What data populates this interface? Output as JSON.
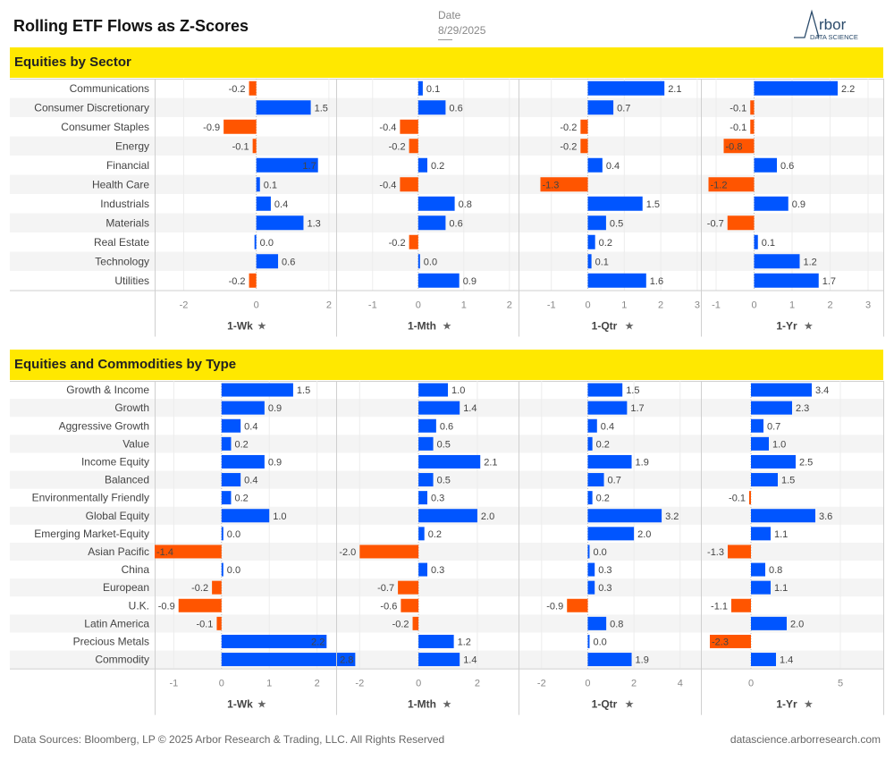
{
  "header": {
    "title": "Rolling ETF Flows as Z-Scores",
    "date_label": "Date",
    "date_value": "8/29/2025",
    "logo_word": "rbor",
    "logo_sub": "DATA SCIENCE"
  },
  "colors": {
    "positive": "#0055FF",
    "negative": "#FF5500",
    "banner": "#FFE800"
  },
  "chart_data": [
    {
      "type": "bar",
      "orientation": "horizontal",
      "title": "Equities by Sector",
      "categories": [
        "Communications",
        "Consumer Discretionary",
        "Consumer Staples",
        "Energy",
        "Financial",
        "Health Care",
        "Industrials",
        "Materials",
        "Real Estate",
        "Technology",
        "Utilities"
      ],
      "series": [
        {
          "name": "1-Wk",
          "values": [
            -0.2,
            1.5,
            -0.9,
            -0.1,
            1.7,
            0.1,
            0.4,
            1.3,
            0.0,
            0.6,
            -0.2
          ],
          "xlim": [
            -2.8,
            2.2
          ],
          "ticks": [
            -2,
            0,
            2
          ]
        },
        {
          "name": "1-Mth",
          "values": [
            0.1,
            0.6,
            -0.4,
            -0.2,
            0.2,
            -0.4,
            0.8,
            0.6,
            -0.2,
            0.0,
            0.9
          ],
          "xlim": [
            -1.8,
            2.2
          ],
          "ticks": [
            -1,
            0,
            1,
            2
          ]
        },
        {
          "name": "1-Qtr",
          "values": [
            2.1,
            0.7,
            -0.2,
            -0.2,
            0.4,
            -1.3,
            1.5,
            0.5,
            0.2,
            0.1,
            1.6
          ],
          "xlim": [
            -1.9,
            3.1
          ],
          "ticks": [
            -1,
            0,
            1,
            2,
            3
          ]
        },
        {
          "name": "1-Yr",
          "values": [
            2.2,
            -0.1,
            -0.1,
            -0.8,
            0.6,
            -1.2,
            0.9,
            -0.7,
            0.1,
            1.2,
            1.7
          ],
          "xlim": [
            -1.4,
            3.4
          ],
          "ticks": [
            -1,
            0,
            1,
            2,
            3
          ]
        }
      ]
    },
    {
      "type": "bar",
      "orientation": "horizontal",
      "title": "Equities and Commodities by Type",
      "categories": [
        "Growth & Income",
        "Growth",
        "Aggressive Growth",
        "Value",
        "Income Equity",
        "Balanced",
        "Environmentally Friendly",
        "Global Equity",
        "Emerging Market-Equity",
        "Asian Pacific",
        "China",
        "European",
        "U.K.",
        "Latin America",
        "Precious Metals",
        "Commodity"
      ],
      "series": [
        {
          "name": "1-Wk",
          "values": [
            1.5,
            0.9,
            0.4,
            0.2,
            0.9,
            0.4,
            0.2,
            1.0,
            0.0,
            -1.4,
            0.0,
            -0.2,
            -0.9,
            -0.1,
            2.2,
            2.8
          ],
          "xlim": [
            -1.4,
            2.4
          ],
          "ticks": [
            -1,
            0,
            1,
            2
          ]
        },
        {
          "name": "1-Mth",
          "values": [
            1.0,
            1.4,
            0.6,
            0.5,
            2.1,
            0.5,
            0.3,
            2.0,
            0.2,
            -2.0,
            0.3,
            -0.7,
            -0.6,
            -0.2,
            1.2,
            1.4
          ],
          "xlim": [
            -2.8,
            3.4
          ],
          "ticks": [
            -2,
            0,
            2
          ]
        },
        {
          "name": "1-Qtr",
          "values": [
            1.5,
            1.7,
            0.4,
            0.2,
            1.9,
            0.7,
            0.2,
            3.2,
            2.0,
            0.0,
            0.3,
            0.3,
            -0.9,
            0.8,
            0.0,
            1.9
          ],
          "xlim": [
            -3.0,
            4.9
          ],
          "ticks": [
            -2,
            0,
            2,
            4
          ]
        },
        {
          "name": "1-Yr",
          "values": [
            3.4,
            2.3,
            0.7,
            1.0,
            2.5,
            1.5,
            -0.1,
            3.6,
            1.1,
            -1.3,
            0.8,
            1.1,
            -1.1,
            2.0,
            -2.3,
            1.4
          ],
          "xlim": [
            -2.8,
            7.4
          ],
          "ticks": [
            0,
            5
          ]
        }
      ]
    }
  ],
  "footer": {
    "left": "Data Sources: Bloomberg, LP © 2025 Arbor Research & Trading, LLC. All Rights Reserved",
    "right": "datascience.arborresearch.com"
  }
}
